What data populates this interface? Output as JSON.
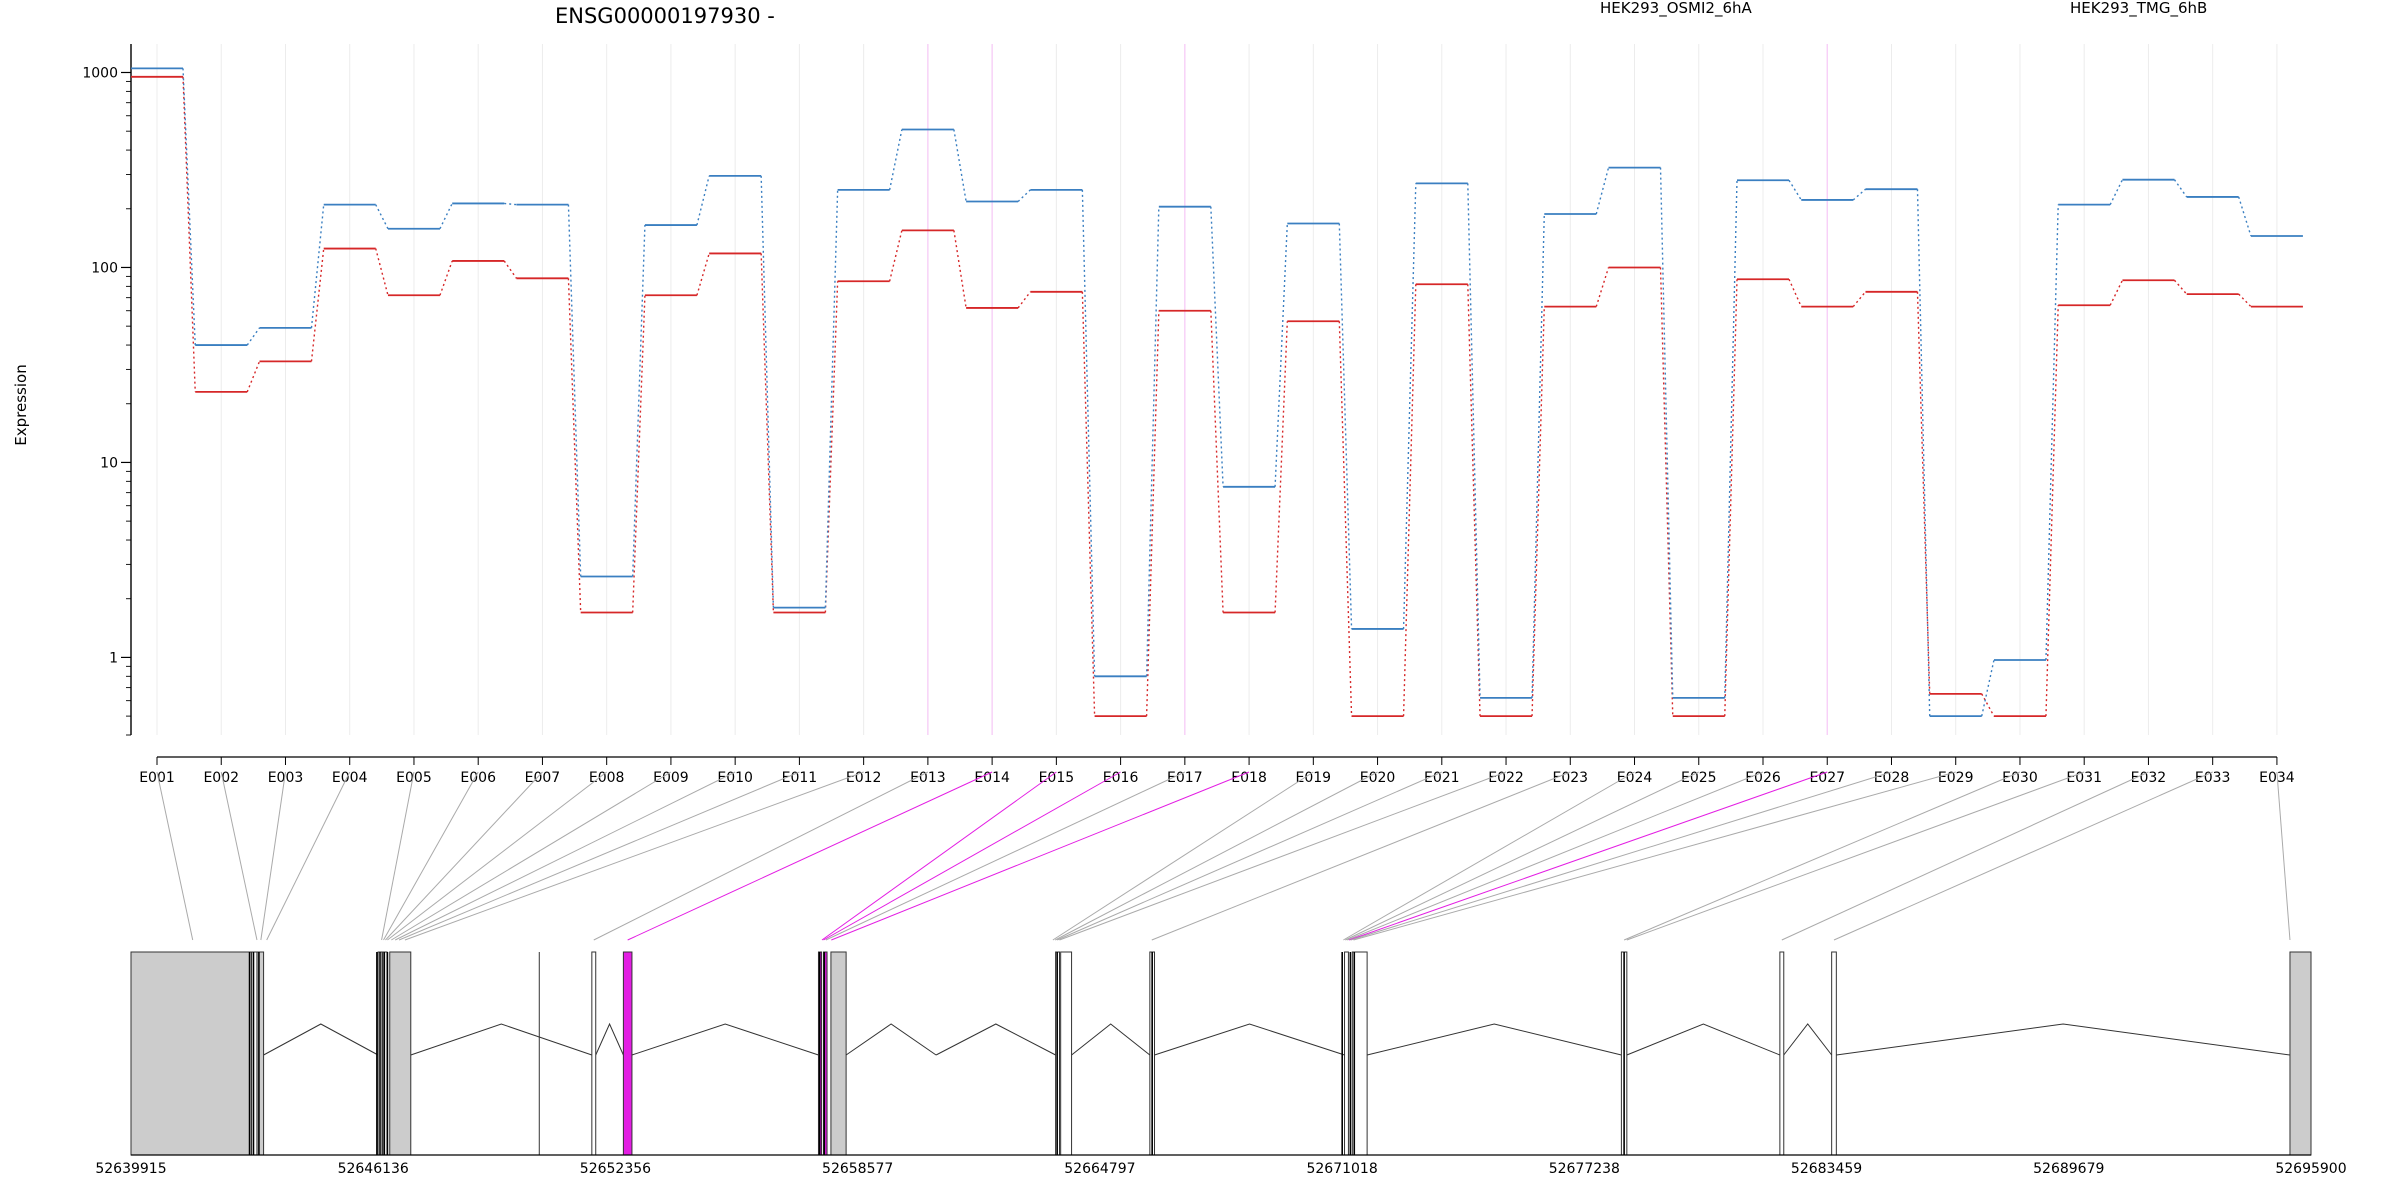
{
  "title": "ENSG00000197930 -",
  "legend": [
    {
      "name": "HEK293_OSMI2_6hA",
      "color": "#d62728"
    },
    {
      "name": "HEK293_TMG_6hB",
      "color": "#3a7fc1"
    }
  ],
  "colors": {
    "highlight": "#e31ee3",
    "exon_fill": "#cccccc",
    "guide": "#aaaaaa"
  },
  "chart_data": {
    "type": "line",
    "ylabel": "Expression",
    "yscale": "log",
    "ylim": [
      0.4,
      1400
    ],
    "yticks": [
      1,
      10,
      100,
      1000
    ],
    "ytick_labels": [
      "1",
      "10",
      "100",
      "1000"
    ],
    "categories": [
      "E001",
      "E002",
      "E003",
      "E004",
      "E005",
      "E006",
      "E007",
      "E008",
      "E009",
      "E010",
      "E011",
      "E012",
      "E013",
      "E014",
      "E015",
      "E016",
      "E017",
      "E018",
      "E019",
      "E020",
      "E021",
      "E022",
      "E023",
      "E024",
      "E025",
      "E026",
      "E027",
      "E028",
      "E029",
      "E030",
      "E031",
      "E032",
      "E033",
      "E034"
    ],
    "highlighted_bins": [
      "E013",
      "E014",
      "E017",
      "E027"
    ],
    "series": [
      {
        "name": "HEK293_OSMI2_6hA",
        "color": "#d62728",
        "values": [
          950,
          23,
          33,
          125,
          72,
          108,
          88,
          1.7,
          72,
          118,
          1.7,
          85,
          155,
          62,
          75,
          0.5,
          60,
          1.7,
          53,
          0.5,
          82,
          0.5,
          63,
          100,
          0.5,
          87,
          63,
          75,
          0.65,
          0.5,
          64,
          86,
          73,
          63
        ]
      },
      {
        "name": "HEK293_TMG_6hB",
        "color": "#3a7fc1",
        "values": [
          1050,
          40,
          49,
          210,
          158,
          213,
          210,
          2.6,
          165,
          295,
          1.8,
          250,
          510,
          218,
          250,
          0.8,
          205,
          7.5,
          168,
          1.4,
          270,
          0.62,
          188,
          325,
          0.62,
          280,
          222,
          252,
          0.5,
          0.97,
          210,
          282,
          230,
          145
        ]
      }
    ],
    "gene_model": {
      "genomic_ticks": [
        "52639915",
        "52646136",
        "52652356",
        "52658577",
        "52664797",
        "52671018",
        "52677238",
        "52683459",
        "52689679",
        "52695900"
      ],
      "domain": [
        52639915,
        52695900
      ],
      "exon_blocks": [
        [
          52639915,
          52643010,
          "gray"
        ],
        [
          52643010,
          52643150,
          "white"
        ],
        [
          52643150,
          52643320,
          "gray"
        ],
        [
          52646260,
          52646360,
          "white"
        ],
        [
          52646380,
          52646490,
          "white"
        ],
        [
          52646560,
          52647100,
          "gray"
        ],
        [
          52651750,
          52651850,
          "white"
        ],
        [
          52652560,
          52652780,
          "pink"
        ],
        [
          52657570,
          52657650,
          "pink"
        ],
        [
          52657700,
          52657790,
          "pink"
        ],
        [
          52657890,
          52658280,
          "gray"
        ],
        [
          52663660,
          52663760,
          "white"
        ],
        [
          52663790,
          52664070,
          "white"
        ],
        [
          52666080,
          52666200,
          "white"
        ],
        [
          52671080,
          52671180,
          "white"
        ],
        [
          52671280,
          52671660,
          "white"
        ],
        [
          52678190,
          52678330,
          "white"
        ],
        [
          52682260,
          52682360,
          "white"
        ],
        [
          52683590,
          52683710,
          "white"
        ],
        [
          52695360,
          52695900,
          "gray"
        ]
      ],
      "exon_lines": [
        52642960,
        52643060,
        52643200,
        52646230,
        52646310,
        52646420,
        52646500,
        52657600,
        52657720,
        52663700,
        52666140,
        52671020,
        52671230,
        52671330,
        52678260
      ],
      "intron_lines": [
        52650400
      ],
      "introns": [
        [
          52643320,
          52646260
        ],
        [
          52647100,
          52651750
        ],
        [
          52651850,
          52652560
        ],
        [
          52652780,
          52657570
        ],
        [
          52658280,
          52660590
        ],
        [
          52660590,
          52663660
        ],
        [
          52664070,
          52666080
        ],
        [
          52666200,
          52671080
        ],
        [
          52671660,
          52678190
        ],
        [
          52678330,
          52682260
        ],
        [
          52682360,
          52683590
        ],
        [
          52683710,
          52695360
        ]
      ],
      "connectors": [
        [
          52641500,
          "gray"
        ],
        [
          52643150,
          "gray"
        ],
        [
          52643250,
          "gray"
        ],
        [
          52643400,
          "gray"
        ],
        [
          52646350,
          "gray"
        ],
        [
          52646400,
          "gray"
        ],
        [
          52646450,
          "gray"
        ],
        [
          52646500,
          "gray"
        ],
        [
          52646600,
          "gray"
        ],
        [
          52646700,
          "gray"
        ],
        [
          52646800,
          "gray"
        ],
        [
          52646950,
          "gray"
        ],
        [
          52651800,
          "gray"
        ],
        [
          52652670,
          "pink"
        ],
        [
          52657660,
          "pink"
        ],
        [
          52657700,
          "pink"
        ],
        [
          52657760,
          "gray"
        ],
        [
          52657900,
          "pink"
        ],
        [
          52663590,
          "gray"
        ],
        [
          52663650,
          "gray"
        ],
        [
          52663700,
          "gray"
        ],
        [
          52663760,
          "gray"
        ],
        [
          52666130,
          "gray"
        ],
        [
          52671050,
          "gray"
        ],
        [
          52671100,
          "gray"
        ],
        [
          52671150,
          "gray"
        ],
        [
          52671200,
          "pink"
        ],
        [
          52671240,
          "gray"
        ],
        [
          52671310,
          "gray"
        ],
        [
          52678260,
          "gray"
        ],
        [
          52678330,
          "gray"
        ],
        [
          52682310,
          "gray"
        ],
        [
          52683650,
          "gray"
        ],
        [
          52695360,
          "gray"
        ]
      ]
    }
  }
}
